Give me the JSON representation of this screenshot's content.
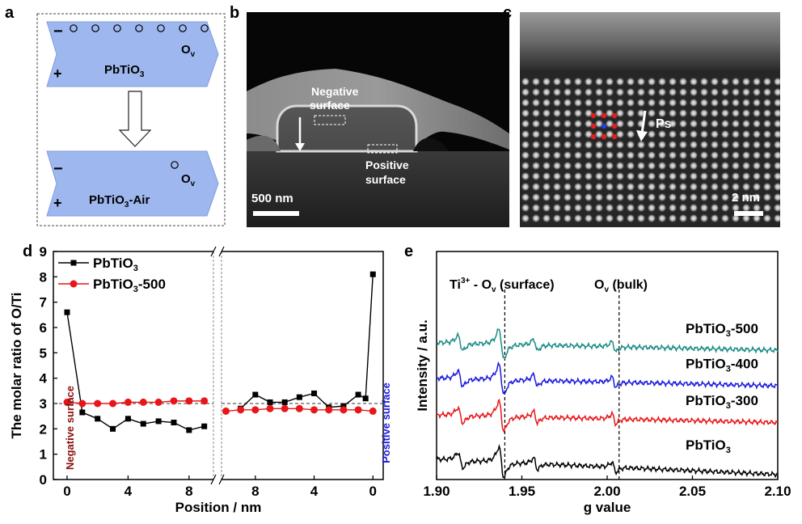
{
  "panel_labels": {
    "a": "a",
    "b": "b",
    "c": "c",
    "d": "d",
    "e": "e"
  },
  "colors": {
    "hex_blue": "#9eb8ef",
    "black": "#000000",
    "red": "#e8161a",
    "blue": "#1919e0",
    "teal": "#1a8c86",
    "dark_red": "#8b1010"
  },
  "panel_a": {
    "top": {
      "minus": "−",
      "plus": "+",
      "ov_base": "O",
      "ov_sub": "v",
      "formula_base": "PbTiO",
      "formula_sub": "3",
      "formula_suffix": ""
    },
    "bottom": {
      "minus": "−",
      "plus": "+",
      "ov_base": "O",
      "ov_sub": "v",
      "formula_base": "PbTiO",
      "formula_sub": "3",
      "formula_suffix": "-Air"
    }
  },
  "panel_b": {
    "negative_label_1": "Negative",
    "negative_label_2": "surface",
    "positive_label_1": "Positive",
    "positive_label_2": "surface",
    "scale_bar": "500 nm"
  },
  "panel_c": {
    "ps_label": "Ps",
    "scale_bar": "2 nm"
  },
  "chart_data": [
    {
      "type": "line",
      "panel": "d",
      "title": "",
      "xlabel": "Position / nm",
      "ylabel": "The molar ratio of O/Ti",
      "ylim": [
        0,
        9
      ],
      "yticks": [
        "0",
        "1",
        "2",
        "3",
        "4",
        "5",
        "6",
        "7",
        "8",
        "9"
      ],
      "xticks_left": [
        "0",
        "4",
        "8"
      ],
      "xticks_right": [
        "8",
        "4",
        "0"
      ],
      "x_left_range": [
        -0.9,
        9.6
      ],
      "x_right_range": [
        10.3,
        -0.7
      ],
      "reference_line": 3,
      "negative_annotation": "Negative surface",
      "positive_annotation": "Positive surface",
      "legend": [
        {
          "base": "PbTiO",
          "sub": "3",
          "suffix": ""
        },
        {
          "base": "PbTiO",
          "sub": "3",
          "suffix": "-500"
        }
      ],
      "series": [
        {
          "name": "PbTiO3",
          "color": "#000000",
          "marker": "square",
          "left": {
            "x": [
              0,
              1,
              2,
              3,
              4,
              5,
              6,
              7,
              8,
              9
            ],
            "y": [
              6.6,
              2.65,
              2.4,
              2.0,
              2.4,
              2.2,
              2.3,
              2.25,
              1.95,
              2.1
            ]
          },
          "right": {
            "x": [
              9,
              8,
              7,
              6,
              5,
              4,
              3,
              2,
              1,
              0.5,
              0
            ],
            "y": [
              2.8,
              3.35,
              3.05,
              3.05,
              3.25,
              3.4,
              2.85,
              2.9,
              3.35,
              3.2,
              8.1
            ]
          }
        },
        {
          "name": "PbTiO3-500",
          "color": "#e8161a",
          "marker": "circle",
          "left": {
            "x": [
              0,
              1,
              2,
              3,
              4,
              5,
              6,
              7,
              8,
              9
            ],
            "y": [
              3.05,
              3.0,
              3.0,
              3.0,
              3.05,
              3.05,
              3.05,
              3.1,
              3.1,
              3.1
            ]
          },
          "right": {
            "x": [
              10,
              9,
              8,
              7,
              6,
              5,
              4,
              3,
              2,
              1,
              0
            ],
            "y": [
              2.7,
              2.75,
              2.75,
              2.8,
              2.8,
              2.8,
              2.75,
              2.75,
              2.75,
              2.75,
              2.7
            ]
          }
        }
      ]
    },
    {
      "type": "line",
      "panel": "e",
      "title": "",
      "xlabel": "g value",
      "ylabel": "Intensity / a.u.",
      "xlim": [
        1.9,
        2.1
      ],
      "xticks": [
        "1.90",
        "1.95",
        "2.00",
        "2.05",
        "2.10"
      ],
      "dashed_lines": [
        1.94,
        2.007
      ],
      "annotation_surface": {
        "base": "Ti",
        "sup": "3+",
        "rest": " - O",
        "sub": "v",
        "tail": " (surface)"
      },
      "annotation_bulk": {
        "base": "O",
        "sub": "v",
        "tail": " (bulk)"
      },
      "series": [
        {
          "name": "PbTiO3",
          "label_base": "PbTiO",
          "label_sub": "3",
          "label_suffix": "",
          "color": "#000000",
          "baseline": 0.8
        },
        {
          "name": "PbTiO3-300",
          "label_base": "PbTiO",
          "label_sub": "3",
          "label_suffix": "-300",
          "color": "#e8161a",
          "baseline": 2.55
        },
        {
          "name": "PbTiO3-400",
          "label_base": "PbTiO",
          "label_sub": "3",
          "label_suffix": "-400",
          "color": "#1919e0",
          "baseline": 4.0
        },
        {
          "name": "PbTiO3-500",
          "label_base": "PbTiO",
          "label_sub": "3",
          "label_suffix": "-500",
          "color": "#1a8c86",
          "baseline": 5.4
        }
      ]
    }
  ]
}
